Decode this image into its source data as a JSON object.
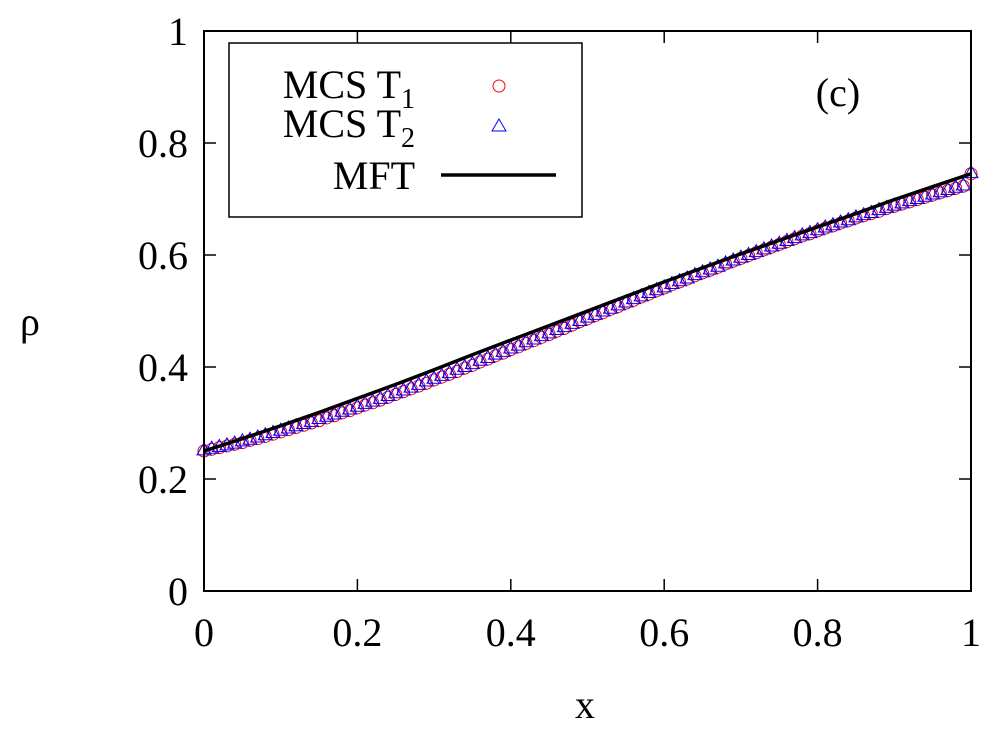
{
  "chart_data": {
    "type": "scatter",
    "title": "",
    "xlabel": "x",
    "ylabel": "ρ",
    "xlim": [
      0,
      1
    ],
    "ylim": [
      0,
      1
    ],
    "x_ticks": [
      "0",
      "0.2",
      "0.4",
      "0.6",
      "0.8",
      "1"
    ],
    "y_ticks": [
      "0",
      "0.2",
      "0.4",
      "0.6",
      "0.8",
      "1"
    ],
    "annotation": "(c)",
    "legend_position": "top-left",
    "series": [
      {
        "name": "MCS T",
        "subscript": "1",
        "marker": "circle",
        "color": "#ff0000",
        "x": [
          0.0,
          0.01,
          0.02,
          0.03,
          0.04,
          0.05,
          0.06,
          0.07,
          0.08,
          0.09,
          0.1,
          0.11,
          0.12,
          0.13,
          0.14,
          0.15,
          0.16,
          0.17,
          0.18,
          0.19,
          0.2,
          0.21,
          0.22,
          0.23,
          0.24,
          0.25,
          0.26,
          0.27,
          0.28,
          0.29,
          0.3,
          0.31,
          0.32,
          0.33,
          0.34,
          0.35,
          0.36,
          0.37,
          0.38,
          0.39,
          0.4,
          0.41,
          0.42,
          0.43,
          0.44,
          0.45,
          0.46,
          0.47,
          0.48,
          0.49,
          0.5,
          0.51,
          0.52,
          0.53,
          0.54,
          0.55,
          0.56,
          0.57,
          0.58,
          0.59,
          0.6,
          0.61,
          0.62,
          0.63,
          0.64,
          0.65,
          0.66,
          0.67,
          0.68,
          0.69,
          0.7,
          0.71,
          0.72,
          0.73,
          0.74,
          0.75,
          0.76,
          0.77,
          0.78,
          0.79,
          0.8,
          0.81,
          0.82,
          0.83,
          0.84,
          0.85,
          0.86,
          0.87,
          0.88,
          0.89,
          0.9,
          0.91,
          0.92,
          0.93,
          0.94,
          0.95,
          0.96,
          0.97,
          0.98,
          0.99,
          1.0
        ],
        "y": [
          0.25,
          0.253,
          0.256,
          0.259,
          0.262,
          0.265,
          0.269,
          0.272,
          0.276,
          0.28,
          0.284,
          0.288,
          0.292,
          0.296,
          0.3,
          0.304,
          0.309,
          0.313,
          0.318,
          0.322,
          0.327,
          0.332,
          0.336,
          0.341,
          0.346,
          0.351,
          0.356,
          0.361,
          0.366,
          0.371,
          0.377,
          0.382,
          0.387,
          0.392,
          0.398,
          0.403,
          0.409,
          0.414,
          0.42,
          0.425,
          0.431,
          0.436,
          0.442,
          0.447,
          0.453,
          0.458,
          0.464,
          0.469,
          0.475,
          0.481,
          0.486,
          0.492,
          0.497,
          0.503,
          0.508,
          0.514,
          0.519,
          0.525,
          0.53,
          0.536,
          0.541,
          0.547,
          0.552,
          0.557,
          0.563,
          0.568,
          0.573,
          0.578,
          0.584,
          0.589,
          0.594,
          0.599,
          0.604,
          0.609,
          0.614,
          0.619,
          0.624,
          0.629,
          0.634,
          0.638,
          0.643,
          0.648,
          0.652,
          0.657,
          0.661,
          0.666,
          0.67,
          0.674,
          0.678,
          0.683,
          0.687,
          0.691,
          0.695,
          0.699,
          0.703,
          0.707,
          0.711,
          0.715,
          0.719,
          0.723,
          0.745
        ]
      },
      {
        "name": "MCS T",
        "subscript": "2",
        "marker": "triangle",
        "color": "#0000ff",
        "x": [
          0.0,
          0.01,
          0.02,
          0.03,
          0.04,
          0.05,
          0.06,
          0.07,
          0.08,
          0.09,
          0.1,
          0.11,
          0.12,
          0.13,
          0.14,
          0.15,
          0.16,
          0.17,
          0.18,
          0.19,
          0.2,
          0.21,
          0.22,
          0.23,
          0.24,
          0.25,
          0.26,
          0.27,
          0.28,
          0.29,
          0.3,
          0.31,
          0.32,
          0.33,
          0.34,
          0.35,
          0.36,
          0.37,
          0.38,
          0.39,
          0.4,
          0.41,
          0.42,
          0.43,
          0.44,
          0.45,
          0.46,
          0.47,
          0.48,
          0.49,
          0.5,
          0.51,
          0.52,
          0.53,
          0.54,
          0.55,
          0.56,
          0.57,
          0.58,
          0.59,
          0.6,
          0.61,
          0.62,
          0.63,
          0.64,
          0.65,
          0.66,
          0.67,
          0.68,
          0.69,
          0.7,
          0.71,
          0.72,
          0.73,
          0.74,
          0.75,
          0.76,
          0.77,
          0.78,
          0.79,
          0.8,
          0.81,
          0.82,
          0.83,
          0.84,
          0.85,
          0.86,
          0.87,
          0.88,
          0.89,
          0.9,
          0.91,
          0.92,
          0.93,
          0.94,
          0.95,
          0.96,
          0.97,
          0.98,
          0.99,
          1.0
        ],
        "y": [
          0.252,
          0.255,
          0.258,
          0.261,
          0.264,
          0.268,
          0.271,
          0.275,
          0.279,
          0.283,
          0.287,
          0.291,
          0.295,
          0.299,
          0.303,
          0.308,
          0.312,
          0.316,
          0.321,
          0.325,
          0.33,
          0.335,
          0.339,
          0.344,
          0.349,
          0.354,
          0.359,
          0.364,
          0.369,
          0.375,
          0.38,
          0.385,
          0.39,
          0.396,
          0.401,
          0.406,
          0.412,
          0.417,
          0.423,
          0.428,
          0.434,
          0.439,
          0.445,
          0.45,
          0.456,
          0.461,
          0.467,
          0.472,
          0.478,
          0.483,
          0.489,
          0.494,
          0.5,
          0.505,
          0.511,
          0.516,
          0.522,
          0.527,
          0.533,
          0.538,
          0.543,
          0.549,
          0.554,
          0.559,
          0.565,
          0.57,
          0.575,
          0.58,
          0.586,
          0.591,
          0.596,
          0.601,
          0.606,
          0.611,
          0.616,
          0.621,
          0.626,
          0.631,
          0.636,
          0.64,
          0.645,
          0.65,
          0.654,
          0.659,
          0.663,
          0.668,
          0.672,
          0.676,
          0.681,
          0.685,
          0.689,
          0.693,
          0.697,
          0.701,
          0.705,
          0.709,
          0.713,
          0.717,
          0.721,
          0.725,
          0.747
        ]
      },
      {
        "name": "MFT",
        "marker": "line",
        "color": "#000000",
        "x": [
          0.0,
          0.05,
          0.1,
          0.15,
          0.2,
          0.25,
          0.3,
          0.35,
          0.4,
          0.45,
          0.5,
          0.55,
          0.6,
          0.65,
          0.7,
          0.75,
          0.8,
          0.85,
          0.9,
          0.95,
          1.0
        ],
        "y": [
          0.25,
          0.272,
          0.295,
          0.319,
          0.344,
          0.369,
          0.395,
          0.422,
          0.448,
          0.474,
          0.5,
          0.526,
          0.552,
          0.577,
          0.602,
          0.626,
          0.65,
          0.674,
          0.699,
          0.722,
          0.745
        ]
      }
    ]
  }
}
